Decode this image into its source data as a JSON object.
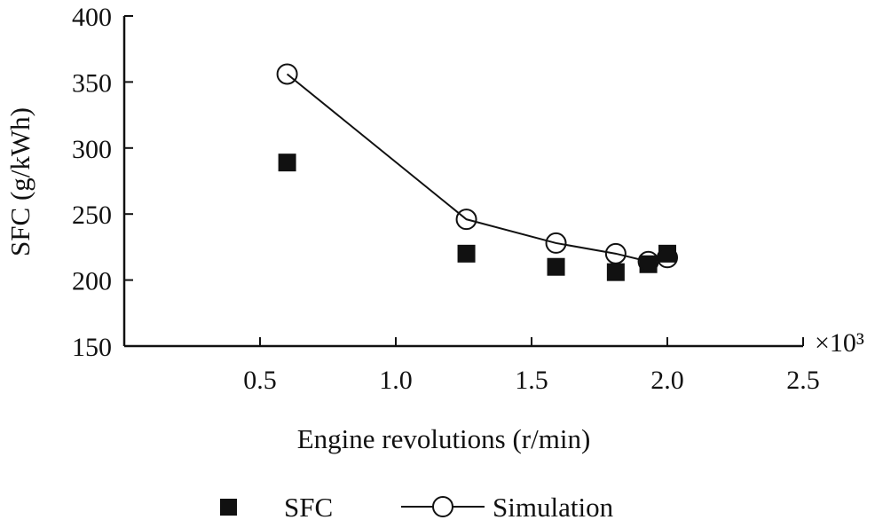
{
  "chart_data": {
    "type": "scatter",
    "title": "",
    "xlabel": "Engine revolutions (r/min)",
    "ylabel": "SFC (g/kWh)",
    "x_multiplier_label": "×10³",
    "xlim": [
      0,
      2.5
    ],
    "ylim": [
      150,
      400
    ],
    "x_ticks": [
      0.5,
      1.0,
      1.5,
      2.0,
      2.5
    ],
    "x_tick_labels": [
      "0.5",
      "1.0",
      "1.5",
      "2.0",
      "2.5"
    ],
    "y_ticks": [
      150,
      200,
      250,
      300,
      350,
      400
    ],
    "y_tick_labels": [
      "150",
      "200",
      "250",
      "300",
      "350",
      "400"
    ],
    "grid": false,
    "legend_position": "bottom",
    "series": [
      {
        "name": "SFC",
        "style": "square-marker",
        "color": "#111111",
        "x": [
          0.6,
          1.26,
          1.59,
          1.81,
          1.93,
          2.0
        ],
        "y": [
          289,
          220,
          210,
          206,
          212,
          220
        ]
      },
      {
        "name": "Simulation",
        "style": "line-open-circle",
        "color": "#111111",
        "x": [
          0.6,
          1.26,
          1.59,
          1.81,
          1.93,
          2.0
        ],
        "y": [
          356,
          246,
          228,
          220,
          214,
          217
        ]
      }
    ]
  }
}
